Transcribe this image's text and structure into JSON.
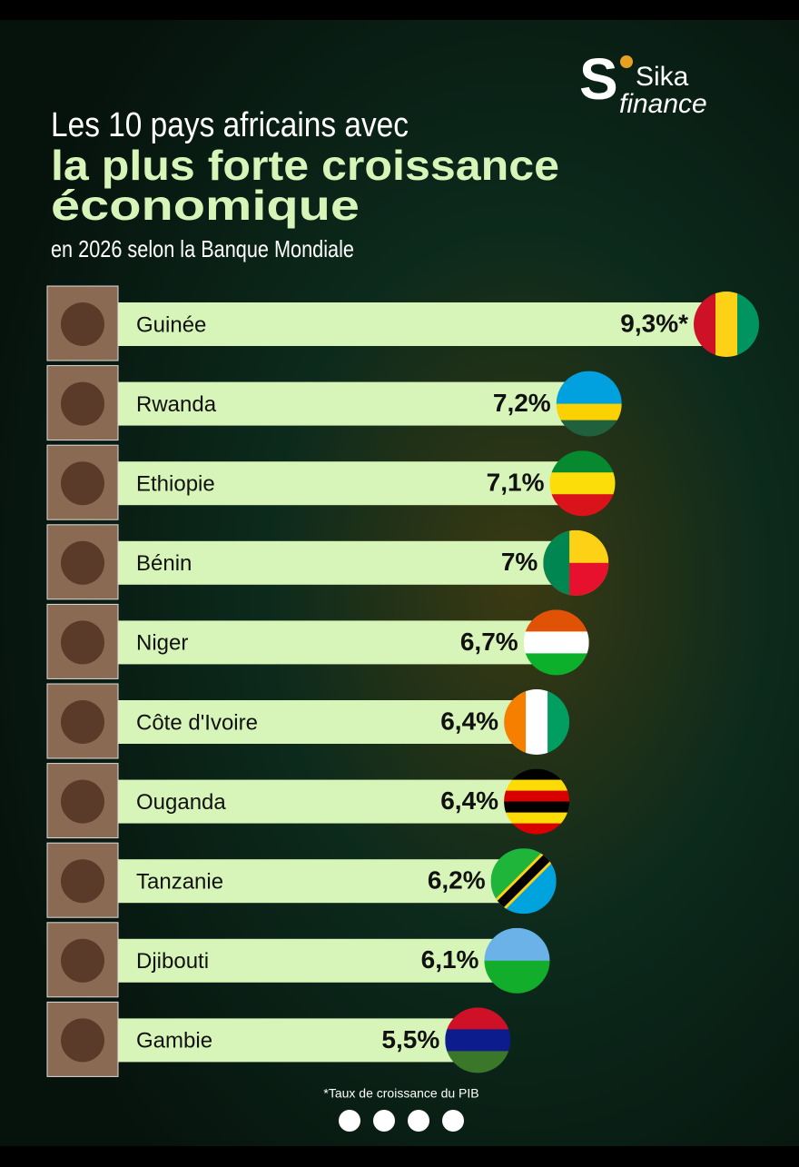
{
  "logo": {
    "mark": "S",
    "name": "Sika",
    "tagline": "finance"
  },
  "chart_data": {
    "type": "hbar",
    "title": [
      "Les 10 pays africains avec",
      "la plus forte croissance",
      "économique"
    ],
    "subtitle": "en 2026 selon la Banque Mondiale",
    "categories": [
      "Guinée",
      "Rwanda",
      "Ethiopie",
      "Bénin",
      "Niger",
      "Côte d'Ivoire",
      "Ouganda",
      "Tanzanie",
      "Djibouti",
      "Gambie"
    ],
    "values": [
      9.3,
      7.2,
      7.1,
      7,
      6.7,
      6.4,
      6.4,
      6.2,
      6.1,
      5.5
    ],
    "value_labels": [
      "9,3%*",
      "7,2%",
      "7,1%",
      "7%",
      "6,7%",
      "6,4%",
      "6,4%",
      "6,2%",
      "6,1%",
      "5,5%"
    ],
    "color": "#d7f5b8",
    "note": "*Taux de croissance du PIB"
  }
}
